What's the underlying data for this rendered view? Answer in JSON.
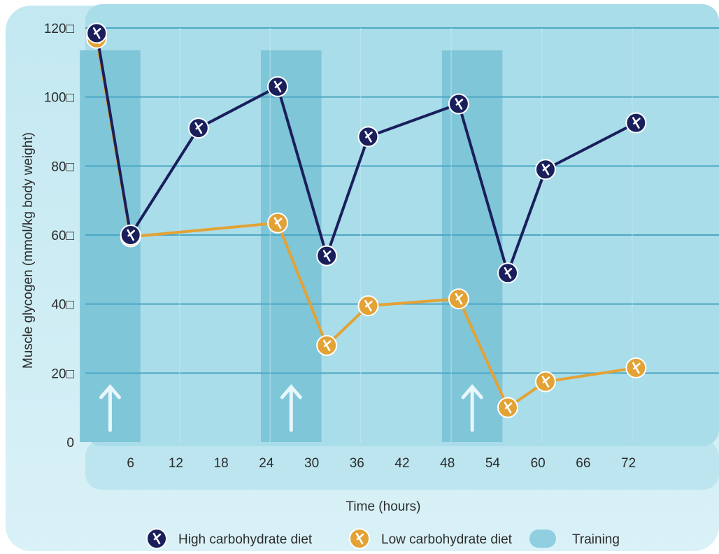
{
  "chart_data": {
    "type": "line",
    "title": "",
    "xlabel": "Time (hours)",
    "ylabel": "Muscle glycogen (mmol/kg body weight)",
    "x_ticks": [
      "6",
      "12",
      "18",
      "24",
      "30",
      "36",
      "42",
      "48",
      "54",
      "60",
      "66",
      "72"
    ],
    "y_ticks": [
      "0",
      "20□",
      "40□",
      "60□",
      "80□",
      "100□",
      "120□"
    ],
    "xlim": [
      0,
      84
    ],
    "ylim": [
      0,
      120
    ],
    "grid": true,
    "legend_position": "bottom",
    "training_windows": [
      [
        1.5,
        6
      ],
      [
        25.5,
        30
      ],
      [
        49.5,
        54
      ]
    ],
    "series": [
      {
        "name": "High carbohydrate diet",
        "color": "#1a1f5c",
        "x": [
          1.5,
          6,
          15,
          25.5,
          32,
          37.5,
          49.5,
          56,
          61,
          73
        ],
        "y": [
          118.5,
          60,
          91,
          103,
          54,
          88.5,
          98,
          49,
          79,
          92.5
        ]
      },
      {
        "name": "Low carbohydrate diet",
        "color": "#e3a235",
        "x": [
          1.5,
          6,
          25.5,
          32,
          37.5,
          49.5,
          56,
          61,
          73
        ],
        "y": [
          117,
          59.5,
          63.5,
          28,
          39.5,
          41.5,
          10,
          17.5,
          21.5
        ]
      }
    ],
    "legend": [
      {
        "label": "High carbohydrate diet",
        "color": "#1a1f5c",
        "icon": "running-figure-icon"
      },
      {
        "label": "Low carbohydrate diet",
        "color": "#e3a235",
        "icon": "running-figure-icon"
      },
      {
        "label": "Training",
        "color": "#8fcfdf",
        "icon": "training-swatch"
      }
    ]
  }
}
